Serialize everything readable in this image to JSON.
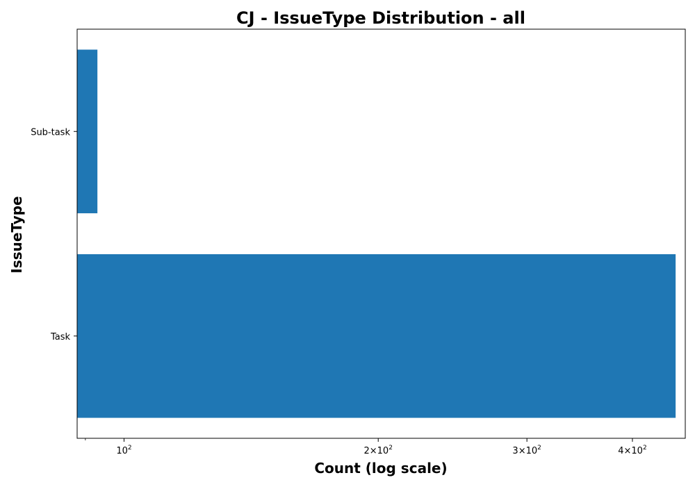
{
  "chart_data": {
    "type": "bar",
    "orientation": "horizontal",
    "title": "CJ - IssueType Distribution - all",
    "xlabel": "Count (log scale)",
    "ylabel": "IssueType",
    "x_scale": "log",
    "xlim": [
      88,
      462
    ],
    "categories": [
      "Sub-task",
      "Task"
    ],
    "values": [
      93,
      450
    ],
    "x_ticks": [
      {
        "value": 100,
        "label": "10^2"
      },
      {
        "value": 200,
        "label": "2×10^2"
      },
      {
        "value": 300,
        "label": "3×10^2"
      },
      {
        "value": 400,
        "label": "4×10^2"
      }
    ],
    "bar_color": "#1f77b4",
    "grid": false,
    "legend": "none"
  }
}
